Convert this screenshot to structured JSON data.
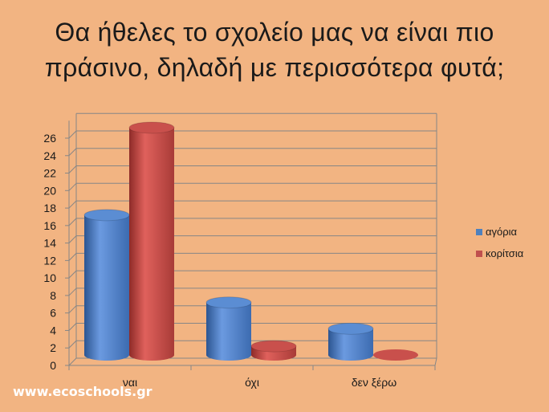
{
  "title_line1": "Θα ήθελες το σχολείο μας να είναι πιο",
  "title_line2": "πράσινο, δηλαδή με περισσότερα φυτά;",
  "footer": "www.ecoschools.gr",
  "colors": {
    "series1": "#4f81bd",
    "series2": "#c0504d",
    "background": "#f2b482"
  },
  "chart_data": {
    "type": "bar",
    "style": "3d-cylinder",
    "categories": [
      "ναι",
      "όχι",
      "δεν ξέρω"
    ],
    "series": [
      {
        "name": "αγόρια",
        "values": [
          16,
          6,
          3
        ]
      },
      {
        "name": "κορίτσια",
        "values": [
          26,
          1,
          0
        ]
      }
    ],
    "ylim": [
      0,
      26
    ],
    "yticks": [
      0,
      2,
      4,
      6,
      8,
      10,
      12,
      14,
      16,
      18,
      20,
      22,
      24,
      26
    ],
    "grid": true,
    "legend": "right"
  }
}
